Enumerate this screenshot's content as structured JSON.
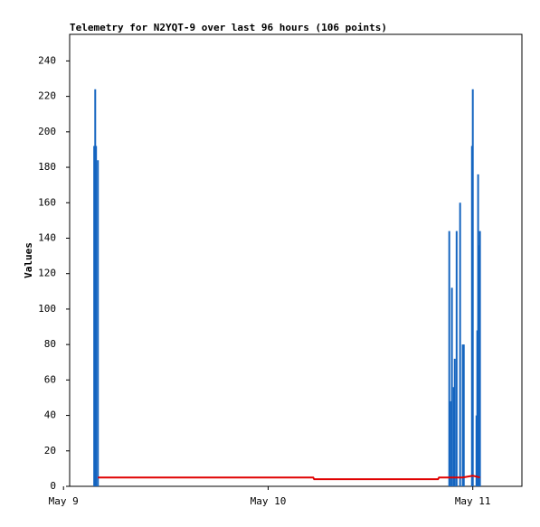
{
  "chart_data": {
    "type": "line",
    "title": "Telemetry for N2YQT-9 over last 96 hours (106 points)",
    "y_label": "Values",
    "xlim": [
      9.03,
      11.24
    ],
    "xticks": [
      {
        "value": 9,
        "label": "May 9"
      },
      {
        "value": 10,
        "label": "May 10"
      },
      {
        "value": 11,
        "label": "May 11"
      }
    ],
    "ylim": [
      0,
      255
    ],
    "yticks": [
      0,
      20,
      40,
      60,
      80,
      100,
      120,
      140,
      160,
      180,
      200,
      220,
      240
    ],
    "series": [
      {
        "kind": "stem",
        "color": "#1565c0",
        "x": [
          9.15,
          9.155,
          9.159,
          9.168,
          10.885,
          10.89,
          10.898,
          10.907,
          10.912,
          10.921,
          10.938,
          10.951,
          10.956,
          10.996,
          11.0,
          11.018,
          11.022,
          11.026,
          11.031,
          11.035
        ],
        "values": [
          192,
          224,
          192,
          184,
          144,
          48,
          112,
          56,
          72,
          144,
          160,
          80,
          80,
          192,
          224,
          40,
          88,
          176,
          136,
          144
        ]
      },
      {
        "kind": "line",
        "color": "#e00000",
        "x": [
          9.168,
          10.22,
          10.225,
          10.83,
          10.835,
          10.95,
          11.0,
          11.035
        ],
        "values": [
          5,
          5,
          4,
          4,
          5,
          5,
          6,
          5
        ]
      }
    ]
  }
}
